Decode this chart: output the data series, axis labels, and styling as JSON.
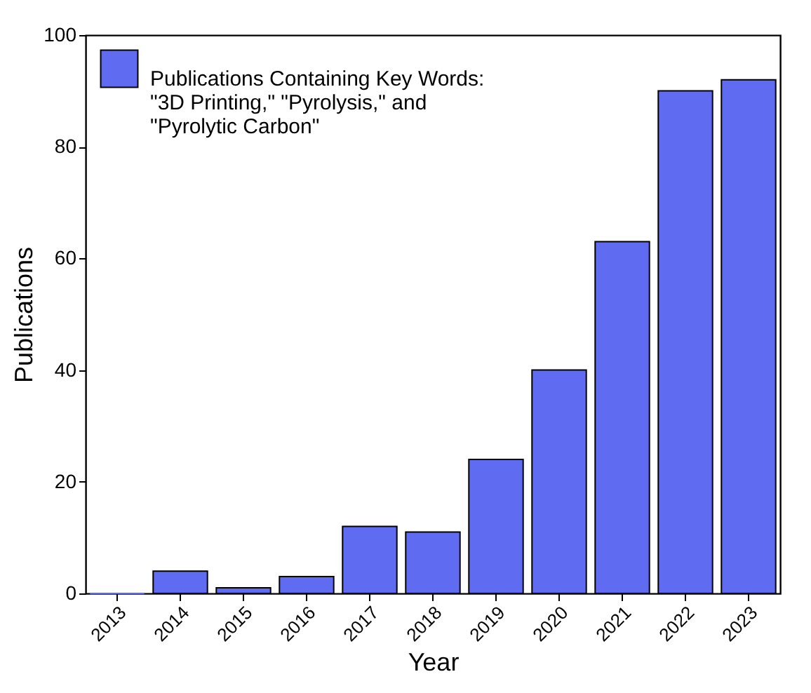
{
  "chart_data": {
    "type": "bar",
    "xlabel": "Year",
    "ylabel": "Publications",
    "categories": [
      "2013",
      "2014",
      "2015",
      "2016",
      "2017",
      "2018",
      "2019",
      "2020",
      "2021",
      "2022",
      "2023"
    ],
    "series": [
      {
        "name": "Publications Containing Key Words: \"3D Printing,\" \"Pyrolysis,\" and \"Pyrolytic Carbon\"",
        "color": "#5f6cf2",
        "values": [
          0,
          4,
          1,
          3,
          12,
          11,
          24,
          40,
          63,
          90,
          92
        ]
      }
    ],
    "ylim": [
      0,
      100
    ],
    "yticks": [
      0,
      20,
      40,
      60,
      80,
      100
    ],
    "legend": "top left"
  }
}
